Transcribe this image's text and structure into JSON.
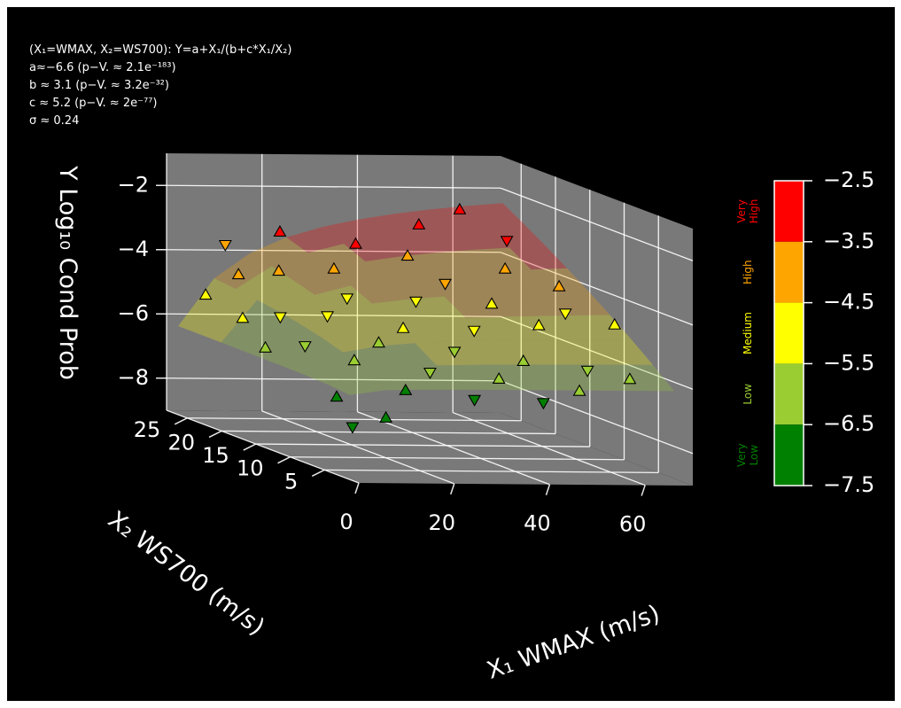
{
  "chart_data": {
    "type": "scatter",
    "projection": "3d",
    "background": "#000000",
    "title": "",
    "annotation": {
      "lines": [
        "(X₁=WMAX, X₂=WS700): Y=a+X₁/(b+c*X₁/X₂)",
        "a≈−6.6 (p−V. ≈ 2.1e⁻¹⁸³)",
        "b ≈ 3.1 (p−V. ≈ 3.2e⁻³²)",
        "c ≈ 5.2 (p−V. ≈ 2e⁻⁷⁷)",
        "σ ≈ 0.24"
      ]
    },
    "model": {
      "a": -6.6,
      "b": 3.1,
      "c": 5.2
    },
    "axes": {
      "x": {
        "label": "X₁ WMAX (m/s)",
        "ticks": [
          0,
          20,
          40,
          60
        ],
        "tick_labels": [
          "0",
          "20",
          "40",
          "60"
        ],
        "range": [
          0,
          70
        ]
      },
      "y": {
        "label": "X₂ WS700 (m/s)",
        "ticks": [
          5,
          10,
          15,
          20,
          25
        ],
        "tick_labels": [
          "5",
          "10",
          "15",
          "20",
          "25"
        ],
        "range": [
          0,
          28
        ]
      },
      "z": {
        "label": "Y Log₁₀ Cond Prob",
        "ticks": [
          -2,
          -4,
          -6,
          -8
        ],
        "tick_labels": [
          "−2",
          "−4",
          "−6",
          "−8"
        ],
        "range": [
          -9,
          -1
        ]
      }
    },
    "colorbar": {
      "ticks": [
        "−2.5",
        "−3.5",
        "−4.5",
        "−5.5",
        "−6.5",
        "−7.5"
      ],
      "categories": [
        {
          "label": "Very High",
          "color": "#ff0000",
          "range": [
            -3.5,
            -2.5
          ]
        },
        {
          "label": "High",
          "color": "#ffa500",
          "range": [
            -4.5,
            -3.5
          ]
        },
        {
          "label": "Medium",
          "color": "#ffff00",
          "range": [
            -5.5,
            -4.5
          ]
        },
        {
          "label": "Low",
          "color": "#9acd32",
          "range": [
            -6.5,
            -5.5
          ]
        },
        {
          "label": "Very Low",
          "color": "#008000",
          "range": [
            -7.5,
            -6.5
          ]
        }
      ]
    },
    "grid": true,
    "legend": "none",
    "colors": {
      "pane": "#808080",
      "grid": "#ffffff",
      "text": "#ffffff"
    },
    "points": [
      {
        "x": 50,
        "y": 26,
        "z": -3.0,
        "m": "up"
      },
      {
        "x": 60,
        "y": 27,
        "z": -2.6,
        "m": "up"
      },
      {
        "x": 18,
        "y": 24,
        "z": -3.1,
        "m": "up"
      },
      {
        "x": 31,
        "y": 22,
        "z": -3.3,
        "m": "up"
      },
      {
        "x": 39,
        "y": 20,
        "z": -3.5,
        "m": "up"
      },
      {
        "x": 67,
        "y": 25,
        "z": -3.4,
        "m": "down"
      },
      {
        "x": 8,
        "y": 25,
        "z": -3.6,
        "m": "down"
      },
      {
        "x": 12,
        "y": 20,
        "z": -4.0,
        "m": "up"
      },
      {
        "x": 25,
        "y": 21,
        "z": -4.0,
        "m": "up"
      },
      {
        "x": 44,
        "y": 18,
        "z": -4.2,
        "m": "down"
      },
      {
        "x": 58,
        "y": 19,
        "z": -3.8,
        "m": "up"
      },
      {
        "x": 65,
        "y": 16,
        "z": -4.1,
        "m": "up"
      },
      {
        "x": 35,
        "y": 16,
        "z": -4.6,
        "m": "down"
      },
      {
        "x": 22,
        "y": 17,
        "z": -4.6,
        "m": "down"
      },
      {
        "x": 5,
        "y": 21,
        "z": -4.2,
        "m": "up"
      },
      {
        "x": 48,
        "y": 14,
        "z": -4.5,
        "m": "up"
      },
      {
        "x": 62,
        "y": 13,
        "z": -4.7,
        "m": "down"
      },
      {
        "x": 55,
        "y": 12,
        "z": -5.0,
        "m": "up"
      },
      {
        "x": 15,
        "y": 15,
        "z": -5.0,
        "m": "down"
      },
      {
        "x": 28,
        "y": 13,
        "z": -5.2,
        "m": "up"
      },
      {
        "x": 40,
        "y": 11,
        "z": -5.1,
        "m": "down"
      },
      {
        "x": 68,
        "y": 10,
        "z": -4.8,
        "m": "up"
      },
      {
        "x": 8,
        "y": 17,
        "z": -5.2,
        "m": "down"
      },
      {
        "x": 20,
        "y": 11,
        "z": -5.5,
        "m": "up"
      },
      {
        "x": 33,
        "y": 9,
        "z": -5.6,
        "m": "down"
      },
      {
        "x": 46,
        "y": 8,
        "z": -5.8,
        "m": "up"
      },
      {
        "x": 58,
        "y": 7,
        "z": -6.0,
        "m": "down"
      },
      {
        "x": 12,
        "y": 9,
        "z": -5.9,
        "m": "up"
      },
      {
        "x": 25,
        "y": 7,
        "z": -6.1,
        "m": "down"
      },
      {
        "x": 38,
        "y": 6,
        "z": -6.2,
        "m": "up"
      },
      {
        "x": 6,
        "y": 12,
        "z": -5.7,
        "m": "down"
      },
      {
        "x": 17,
        "y": 5,
        "z": -6.5,
        "m": "up"
      },
      {
        "x": 30,
        "y": 4,
        "z": -6.7,
        "m": "down"
      },
      {
        "x": 4,
        "y": 6,
        "z": -6.8,
        "m": "up"
      },
      {
        "x": 10,
        "y": 3,
        "z": -7.2,
        "m": "up"
      },
      {
        "x": 3,
        "y": 3,
        "z": -7.5,
        "m": "down"
      },
      {
        "x": 52,
        "y": 4,
        "z": -6.4,
        "m": "up"
      },
      {
        "x": 64,
        "y": 5,
        "z": -6.1,
        "m": "up"
      },
      {
        "x": 43,
        "y": 3,
        "z": -6.7,
        "m": "down"
      },
      {
        "x": 2,
        "y": 15,
        "z": -6.0,
        "m": "up"
      },
      {
        "x": 3,
        "y": 19,
        "z": -5.4,
        "m": "up"
      },
      {
        "x": 1,
        "y": 23,
        "z": -5.0,
        "m": "up"
      }
    ]
  }
}
